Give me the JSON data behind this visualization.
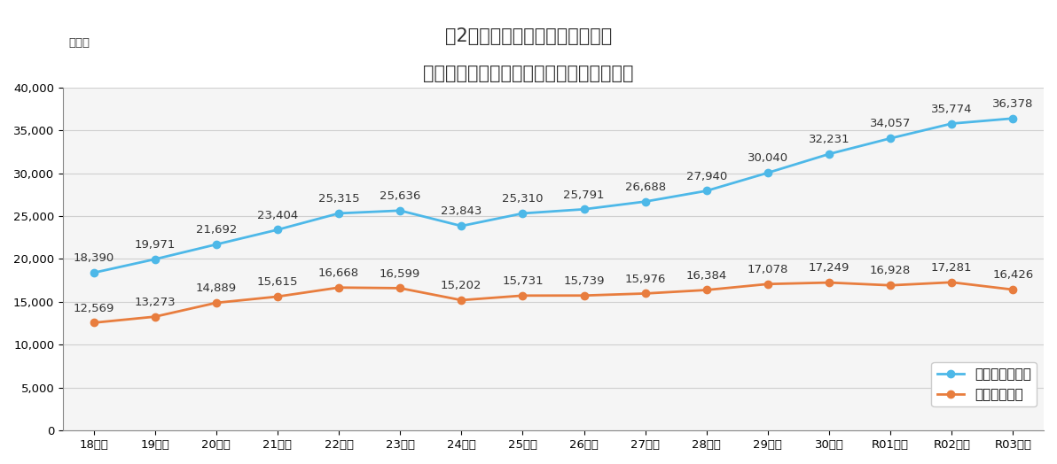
{
  "title_line1": "図2　養護者による高齢者虐待の",
  "title_line2": "　　相談・通報件数と虐待判断件数の推移",
  "ylabel_unit": "（件）",
  "categories": [
    "18年度",
    "19年度",
    "20年度",
    "21年度",
    "22年度",
    "23年度",
    "24年度",
    "25年度",
    "26年度",
    "27年度",
    "28年度",
    "29年度",
    "30年度",
    "R01年度",
    "R02年度",
    "R03年度"
  ],
  "series1_label": "相談・通報件数",
  "series1_values": [
    18390,
    19971,
    21692,
    23404,
    25315,
    25636,
    23843,
    25310,
    25791,
    26688,
    27940,
    30040,
    32231,
    34057,
    35774,
    36378
  ],
  "series1_color": "#4db8e8",
  "series2_label": "虐待判断件数",
  "series2_values": [
    12569,
    13273,
    14889,
    15615,
    16668,
    16599,
    15202,
    15731,
    15739,
    15976,
    16384,
    17078,
    17249,
    16928,
    17281,
    16426
  ],
  "series2_color": "#e87d3e",
  "ylim": [
    0,
    40000
  ],
  "yticks": [
    0,
    5000,
    10000,
    15000,
    20000,
    25000,
    30000,
    35000,
    40000
  ],
  "bg_color": "#ffffff",
  "plot_bg_color": "#f5f5f5",
  "grid_color": "#d0d0d0",
  "title_fontsize": 15,
  "label_fontsize": 9.5,
  "tick_fontsize": 9.5,
  "legend_fontsize": 11
}
